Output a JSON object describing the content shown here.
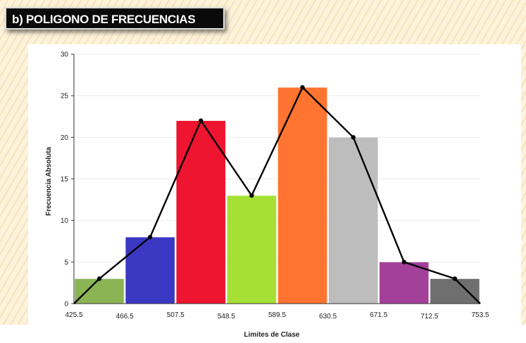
{
  "slide": {
    "title": "b) POLIGONO DE FRECUENCIAS"
  },
  "chart_data": {
    "type": "bar",
    "xlabel": "Limites de Clase",
    "ylabel": "Frecuencia Absoluta",
    "ylim": [
      0,
      30
    ],
    "y_ticks": [
      "0",
      "5",
      "10",
      "15",
      "20",
      "25",
      "30"
    ],
    "class_limits": [
      "425.5",
      "466.5",
      "507.5",
      "548.5",
      "589.5",
      "630.5",
      "671.5",
      "712.5",
      "753.5"
    ],
    "series": [
      {
        "type": "bar",
        "values": [
          3,
          8,
          22,
          13,
          26,
          20,
          5,
          3
        ],
        "colors": [
          "#8bb455",
          "#3b38c4",
          "#ee1530",
          "#a6e035",
          "#ff7430",
          "#bdbdbd",
          "#a3409a",
          "#6f6f6f"
        ]
      },
      {
        "type": "line",
        "x": [
          425.5,
          446,
          487,
          528,
          569,
          610,
          651,
          692,
          733,
          753.5
        ],
        "values": [
          0,
          3,
          8,
          22,
          13,
          26,
          20,
          5,
          3,
          0
        ]
      }
    ]
  }
}
